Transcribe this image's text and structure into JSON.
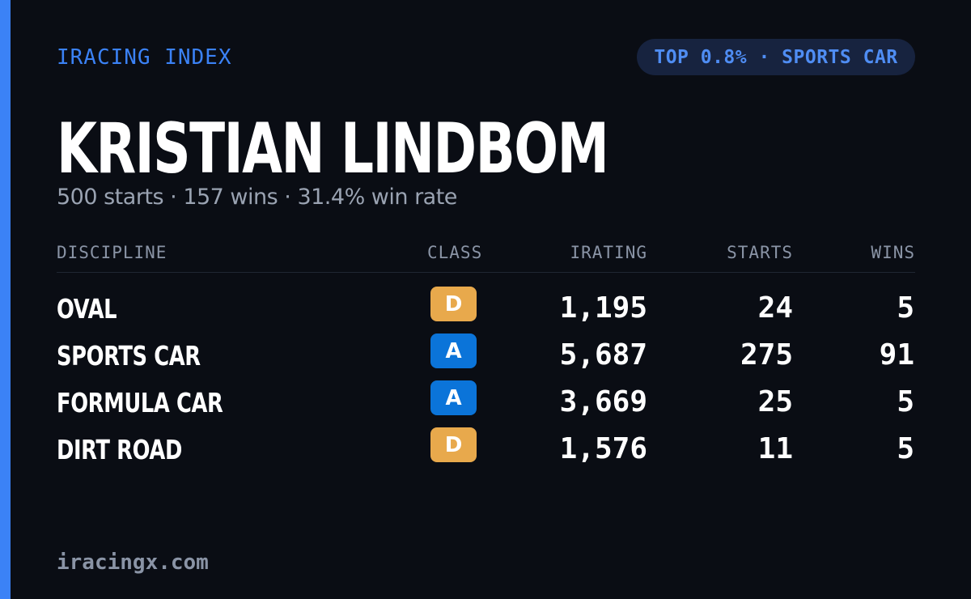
{
  "brand": "IRACING INDEX",
  "rank_badge": "TOP 0.8% · SPORTS CAR",
  "driver": {
    "name": "KRISTIAN LINDBOM",
    "summary": "500 starts · 157 wins · 31.4% win rate"
  },
  "table": {
    "headers": {
      "discipline": "DISCIPLINE",
      "class": "CLASS",
      "irating": "IRATING",
      "starts": "STARTS",
      "wins": "WINS"
    },
    "rows": [
      {
        "discipline": "OVAL",
        "class": "D",
        "irating": "1,195",
        "starts": "24",
        "wins": "5"
      },
      {
        "discipline": "SPORTS CAR",
        "class": "A",
        "irating": "5,687",
        "starts": "275",
        "wins": "91"
      },
      {
        "discipline": "FORMULA CAR",
        "class": "A",
        "irating": "3,669",
        "starts": "25",
        "wins": "5"
      },
      {
        "discipline": "DIRT ROAD",
        "class": "D",
        "irating": "1,576",
        "starts": "11",
        "wins": "5"
      }
    ]
  },
  "class_colors": {
    "A": "#0b74d9",
    "D": "#e8a94c"
  },
  "colors": {
    "accent": "#3b82f6",
    "background": "#0a0d14"
  },
  "footer": "iracingx.com"
}
